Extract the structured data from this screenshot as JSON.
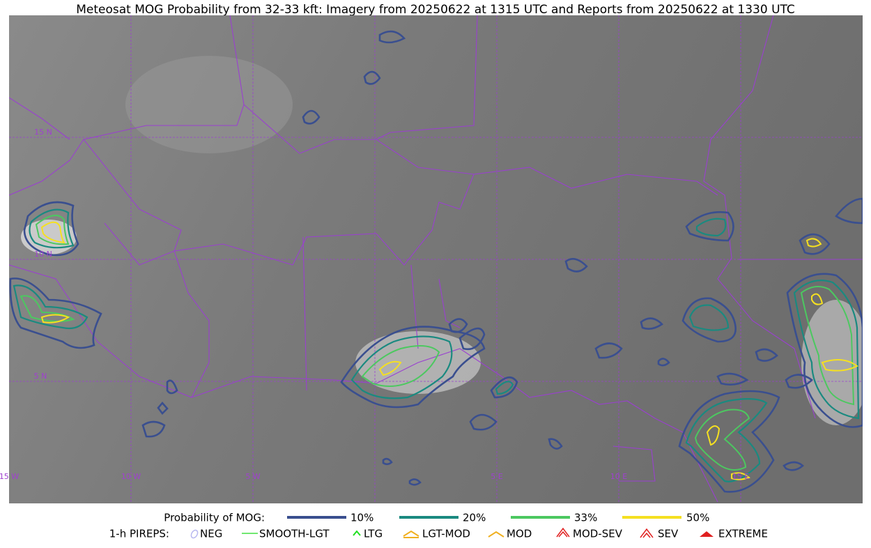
{
  "title": "Meteosat MOG Probability from 32-33 kft: Imagery from 20250622 at 1315 UTC and Reports from 20250622 at 1330 UTC",
  "map": {
    "lat_labels": [
      "15 N",
      "10 N",
      "5 N"
    ],
    "lon_labels": [
      "15 W",
      "10 W",
      "5 W",
      "5 E",
      "10 E",
      "15 E"
    ]
  },
  "legend": {
    "probability": {
      "label": "Probability of MOG:",
      "items": [
        "10%",
        "20%",
        "33%",
        "50%"
      ]
    },
    "pireps": {
      "label": "1-h PIREPS:",
      "items": [
        "NEG",
        "SMOOTH-LGT",
        "LTG",
        "LGT-MOD",
        "MOD",
        "MOD-SEV",
        "SEV",
        "EXTREME"
      ]
    }
  }
}
